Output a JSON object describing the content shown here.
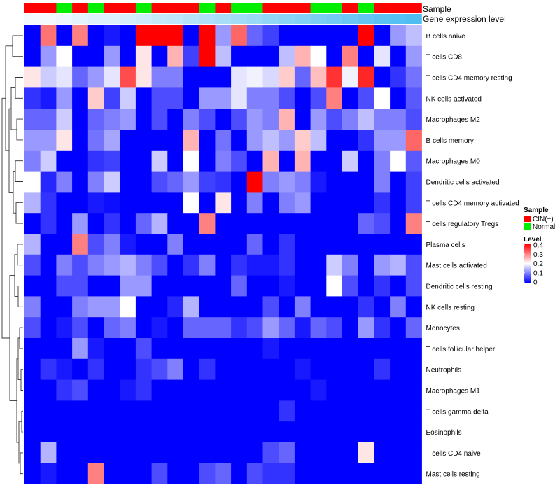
{
  "chart_data": {
    "type": "heatmap",
    "annotation_labels": {
      "sample": "Sample",
      "expression": "Gene expression level"
    },
    "rows": [
      "B cells naive",
      "T cells CD8",
      "T cells CD4 memory resting",
      "NK cells activated",
      "Macrophages M2",
      "B cells memory",
      "Macrophages M0",
      "Dendritic cells activated",
      "T cells CD4 memory activated",
      "T cells regulatory  Tregs",
      "Plasma cells",
      "Mast cells activated",
      "Dendritic cells resting",
      "NK cells resting",
      "Monocytes",
      "T cells follicular helper",
      "Neutrophils",
      "Macrophages M1",
      "T cells gamma delta",
      "Eosinophils",
      "T cells CD4 naive",
      "Mast cells resting"
    ],
    "column_sample": [
      "CIN(+)",
      "CIN(+)",
      "Normal",
      "CIN(+)",
      "Normal",
      "CIN(+)",
      "CIN(+)",
      "Normal",
      "CIN(+)",
      "CIN(+)",
      "CIN(+)",
      "Normal",
      "CIN(+)",
      "Normal",
      "Normal",
      "CIN(+)",
      "CIN(+)",
      "CIN(+)",
      "Normal",
      "Normal",
      "CIN(+)",
      "Normal",
      "CIN(+)",
      "CIN(+)",
      "CIN(+)"
    ],
    "column_expression": [
      0.02,
      0.02,
      0.03,
      0.04,
      0.05,
      0.05,
      0.06,
      0.07,
      0.08,
      0.09,
      0.1,
      0.11,
      0.12,
      0.13,
      0.14,
      0.15,
      0.16,
      0.17,
      0.18,
      0.19,
      0.2,
      0.21,
      0.22,
      0.23,
      0.24
    ],
    "values": [
      [
        0.0,
        0.31,
        0.0,
        0.3,
        0.0,
        0.02,
        0.0,
        0.4,
        0.4,
        0.4,
        0.0,
        0.4,
        0.12,
        0.32,
        0.08,
        0.05,
        0.0,
        0.0,
        0.0,
        0.0,
        0.0,
        0.4,
        0.0,
        0.12,
        0.15
      ],
      [
        0.0,
        0.12,
        0.2,
        0.0,
        0.0,
        0.12,
        0.0,
        0.22,
        0.0,
        0.26,
        0.05,
        0.4,
        0.15,
        0.0,
        0.0,
        0.0,
        0.15,
        0.26,
        0.2,
        0.0,
        0.3,
        0.0,
        0.18,
        0.0,
        0.12
      ],
      [
        0.22,
        0.16,
        0.18,
        0.08,
        0.12,
        0.18,
        0.34,
        0.22,
        0.1,
        0.1,
        0.0,
        0.0,
        0.0,
        0.18,
        0.19,
        0.17,
        0.24,
        0.08,
        0.25,
        0.36,
        0.19,
        0.37,
        0.0,
        0.04,
        0.09
      ],
      [
        0.04,
        0.02,
        0.12,
        0.0,
        0.24,
        0.05,
        0.16,
        0.0,
        0.06,
        0.06,
        0.0,
        0.12,
        0.12,
        0.18,
        0.1,
        0.1,
        0.06,
        0.0,
        0.06,
        0.3,
        0.0,
        0.06,
        0.2,
        0.0,
        0.07
      ],
      [
        0.08,
        0.08,
        0.16,
        0.0,
        0.08,
        0.1,
        0.12,
        0.0,
        0.06,
        0.0,
        0.1,
        0.06,
        0.0,
        0.06,
        0.12,
        0.1,
        0.26,
        0.0,
        0.12,
        0.06,
        0.1,
        0.15,
        0.1,
        0.1,
        0.06
      ],
      [
        0.12,
        0.12,
        0.22,
        0.0,
        0.09,
        0.13,
        0.0,
        0.0,
        0.0,
        0.0,
        0.26,
        0.0,
        0.09,
        0.0,
        0.12,
        0.15,
        0.12,
        0.24,
        0.15,
        0.0,
        0.0,
        0.04,
        0.12,
        0.12,
        0.32
      ],
      [
        0.1,
        0.16,
        0.0,
        0.0,
        0.04,
        0.05,
        0.0,
        0.0,
        0.16,
        0.0,
        0.2,
        0.0,
        0.1,
        0.06,
        0.0,
        0.26,
        0.0,
        0.26,
        0.0,
        0.0,
        0.16,
        0.0,
        0.1,
        0.2,
        0.07
      ],
      [
        0.2,
        0.03,
        0.1,
        0.0,
        0.1,
        0.16,
        0.0,
        0.0,
        0.06,
        0.08,
        0.12,
        0.05,
        0.04,
        0.0,
        0.4,
        0.1,
        0.12,
        0.1,
        0.02,
        0.0,
        0.0,
        0.0,
        0.1,
        0.0,
        0.05
      ],
      [
        0.14,
        0.04,
        0.0,
        0.0,
        0.02,
        0.01,
        0.0,
        0.0,
        0.0,
        0.0,
        0.2,
        0.0,
        0.22,
        0.0,
        0.1,
        0.0,
        0.1,
        0.12,
        0.0,
        0.0,
        0.0,
        0.0,
        0.04,
        0.0,
        0.05
      ],
      [
        0.0,
        0.04,
        0.0,
        0.12,
        0.0,
        0.04,
        0.0,
        0.08,
        0.14,
        0.0,
        0.0,
        0.3,
        0.0,
        0.0,
        0.0,
        0.0,
        0.0,
        0.0,
        0.0,
        0.0,
        0.0,
        0.08,
        0.06,
        0.0,
        0.3
      ],
      [
        0.14,
        0.0,
        0.0,
        0.3,
        0.06,
        0.1,
        0.02,
        0.0,
        0.0,
        0.1,
        0.0,
        0.0,
        0.0,
        0.0,
        0.08,
        0.0,
        0.04,
        0.0,
        0.0,
        0.0,
        0.0,
        0.0,
        0.0,
        0.0,
        0.0
      ],
      [
        0.06,
        0.0,
        0.1,
        0.06,
        0.1,
        0.12,
        0.14,
        0.1,
        0.06,
        0.0,
        0.04,
        0.1,
        0.0,
        0.04,
        0.02,
        0.02,
        0.04,
        0.0,
        0.0,
        0.16,
        0.1,
        0.0,
        0.12,
        0.14,
        0.06
      ],
      [
        0.0,
        0.0,
        0.06,
        0.06,
        0.0,
        0.0,
        0.12,
        0.12,
        0.0,
        0.0,
        0.0,
        0.0,
        0.0,
        0.08,
        0.0,
        0.0,
        0.02,
        0.0,
        0.0,
        0.2,
        0.06,
        0.0,
        0.04,
        0.0,
        0.06
      ],
      [
        0.1,
        0.0,
        0.0,
        0.1,
        0.12,
        0.12,
        0.2,
        0.0,
        0.0,
        0.03,
        0.14,
        0.0,
        0.0,
        0.0,
        0.0,
        0.06,
        0.0,
        0.1,
        0.0,
        0.0,
        0.0,
        0.04,
        0.0,
        0.1,
        0.0
      ],
      [
        0.06,
        0.0,
        0.02,
        0.06,
        0.0,
        0.08,
        0.1,
        0.0,
        0.02,
        0.0,
        0.08,
        0.08,
        0.08,
        0.04,
        0.06,
        0.12,
        0.08,
        0.02,
        0.08,
        0.06,
        0.0,
        0.12,
        0.04,
        0.0,
        0.08
      ],
      [
        0.0,
        0.0,
        0.0,
        0.12,
        0.02,
        0.0,
        0.0,
        0.06,
        0.0,
        0.0,
        0.0,
        0.0,
        0.0,
        0.0,
        0.0,
        0.02,
        0.0,
        0.0,
        0.0,
        0.0,
        0.0,
        0.0,
        0.0,
        0.0,
        0.0
      ],
      [
        0.0,
        0.04,
        0.02,
        0.0,
        0.04,
        0.0,
        0.0,
        0.04,
        0.06,
        0.1,
        0.0,
        0.04,
        0.0,
        0.0,
        0.0,
        0.0,
        0.0,
        0.02,
        0.0,
        0.0,
        0.0,
        0.0,
        0.04,
        0.0,
        0.0
      ],
      [
        0.0,
        0.0,
        0.04,
        0.06,
        0.0,
        0.0,
        0.02,
        0.04,
        0.0,
        0.0,
        0.0,
        0.0,
        0.0,
        0.0,
        0.0,
        0.0,
        0.0,
        0.0,
        0.02,
        0.0,
        0.0,
        0.0,
        0.0,
        0.0,
        0.0
      ],
      [
        0.0,
        0.0,
        0.0,
        0.0,
        0.0,
        0.0,
        0.0,
        0.0,
        0.0,
        0.0,
        0.0,
        0.0,
        0.0,
        0.0,
        0.0,
        0.0,
        0.04,
        0.0,
        0.0,
        0.0,
        0.0,
        0.0,
        0.0,
        0.0,
        0.0
      ],
      [
        0.0,
        0.0,
        0.0,
        0.0,
        0.0,
        0.0,
        0.0,
        0.0,
        0.0,
        0.0,
        0.0,
        0.0,
        0.0,
        0.0,
        0.0,
        0.0,
        0.0,
        0.0,
        0.0,
        0.0,
        0.0,
        0.0,
        0.0,
        0.0,
        0.0
      ],
      [
        0.0,
        0.14,
        0.0,
        0.0,
        0.0,
        0.0,
        0.0,
        0.0,
        0.0,
        0.0,
        0.0,
        0.0,
        0.0,
        0.0,
        0.0,
        0.06,
        0.08,
        0.0,
        0.0,
        0.0,
        0.0,
        0.22,
        0.0,
        0.0,
        0.0
      ],
      [
        0.0,
        0.02,
        0.0,
        0.0,
        0.3,
        0.0,
        0.0,
        0.0,
        0.06,
        0.0,
        0.0,
        0.06,
        0.08,
        0.0,
        0.06,
        0.04,
        0.04,
        0.0,
        0.0,
        0.0,
        0.0,
        0.0,
        0.0,
        0.0,
        0.0
      ]
    ],
    "legends": {
      "sample": {
        "title": "Sample",
        "items": [
          {
            "label": "CIN(+)",
            "color": "#ff0000"
          },
          {
            "label": "Normal",
            "color": "#00ee00"
          }
        ]
      },
      "level": {
        "title": "Level",
        "ticks": [
          "0.4",
          "0.3",
          "0.2",
          "0.1",
          "0"
        ],
        "min": 0,
        "max": 0.4
      }
    },
    "colors": {
      "low": "#0000ff",
      "mid": "#ffffff",
      "high": "#ff0000",
      "expression_low": "#f4f9fd",
      "expression_high": "#4dbdf2"
    }
  }
}
